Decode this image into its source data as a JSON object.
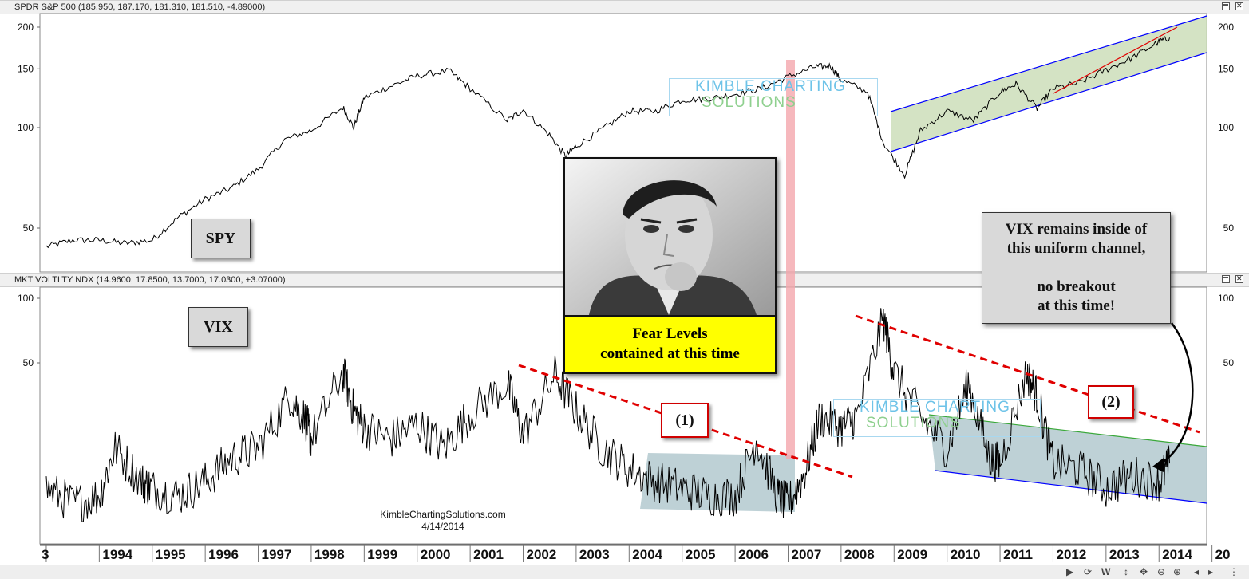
{
  "window": {
    "top_pane_title": "SPDR S&P 500 (185.950, 187.170, 181.310, 181.510, -4.89000)",
    "bottom_pane_title": "MKT VOLTLTY NDX (14.9600, 17.8500, 13.7000, 17.0300, +3.07000)"
  },
  "annotations": {
    "spy_label": "SPY",
    "vix_label": "VIX",
    "fear_caption_line1": "Fear Levels",
    "fear_caption_line2": "contained at this time",
    "callout_line1": "VIX remains inside of",
    "callout_line2": "this uniform channel,",
    "callout_line3": "no breakout",
    "callout_line4": "at this time!",
    "marker1": "(1)",
    "marker2": "(2)",
    "watermark_line1": "KIMBLE CHARTING",
    "watermark_line2": "SOLUTIONS",
    "credit_site": "KimbleChartingSolutions.com",
    "credit_date": "4/14/2014"
  },
  "colors": {
    "price_line": "#000000",
    "trend_dashed": "#e00000",
    "spy_channel_fill": "#c9dcb5",
    "spy_channel_line": "#0000ff",
    "spy_inner_trend": "#e00000",
    "vix_zone_fill": "#b7ccd2",
    "vix_channel_top": "#3aa83a",
    "vix_channel_bottom": "#0000ff",
    "highlight_band": "#f4a6ad",
    "caption_bg": "#ffff00"
  },
  "chart_data": [
    {
      "type": "line",
      "name_label": "SPY",
      "scale": "log",
      "y_ticks": [
        50,
        100,
        150,
        200
      ],
      "x": [
        1993.0,
        1993.5,
        1994.0,
        1994.5,
        1995.0,
        1995.5,
        1996.0,
        1996.5,
        1997.0,
        1997.5,
        1998.0,
        1998.6,
        1998.8,
        1999.0,
        1999.5,
        2000.0,
        2000.6,
        2001.0,
        2001.7,
        2002.0,
        2002.5,
        2002.8,
        2003.0,
        2003.5,
        2004.0,
        2004.5,
        2005.0,
        2005.5,
        2006.0,
        2006.5,
        2007.0,
        2007.5,
        2007.8,
        2008.0,
        2008.5,
        2008.8,
        2009.2,
        2009.5,
        2010.0,
        2010.5,
        2011.0,
        2011.3,
        2011.7,
        2012.0,
        2012.5,
        2013.0,
        2013.5,
        2014.0,
        2014.2
      ],
      "y": [
        44,
        46,
        46,
        45,
        46,
        54,
        61,
        66,
        75,
        92,
        98,
        115,
        100,
        123,
        133,
        143,
        148,
        131,
        105,
        113,
        95,
        82,
        88,
        99,
        112,
        112,
        121,
        122,
        126,
        131,
        142,
        152,
        153,
        139,
        128,
        90,
        72,
        98,
        112,
        105,
        128,
        135,
        114,
        131,
        136,
        149,
        162,
        181,
        186
      ]
    },
    {
      "type": "line",
      "name_label": "VIX",
      "scale": "log",
      "y_ticks": [
        50,
        100
      ],
      "x": [
        1993.0,
        1993.5,
        1994.0,
        1994.3,
        1994.8,
        1995.0,
        1995.5,
        1996.0,
        1996.5,
        1997.0,
        1997.6,
        1997.9,
        1998.0,
        1998.6,
        1998.8,
        1999.0,
        1999.5,
        2000.0,
        2000.5,
        2001.0,
        2001.7,
        2002.0,
        2002.6,
        2003.0,
        2003.5,
        2004.0,
        2004.5,
        2005.0,
        2005.5,
        2006.0,
        2006.4,
        2006.8,
        2007.0,
        2007.3,
        2007.6,
        2008.0,
        2008.3,
        2008.8,
        2009.0,
        2009.5,
        2010.0,
        2010.4,
        2010.8,
        2011.0,
        2011.5,
        2011.7,
        2012.0,
        2012.5,
        2013.0,
        2013.5,
        2014.0,
        2014.2
      ],
      "y": [
        13,
        11,
        12,
        20,
        14,
        13,
        12,
        14,
        18,
        20,
        35,
        27,
        22,
        45,
        30,
        25,
        22,
        26,
        20,
        29,
        40,
        23,
        44,
        30,
        20,
        16,
        14,
        13,
        12,
        12,
        22,
        12,
        11,
        15,
        28,
        25,
        28,
        80,
        45,
        28,
        20,
        40,
        18,
        17,
        45,
        35,
        17,
        16,
        13,
        15,
        14,
        17
      ]
    }
  ],
  "x_axis_labels": [
    "3",
    "1994",
    "1995",
    "1996",
    "1997",
    "1998",
    "1999",
    "2000",
    "2001",
    "2002",
    "2003",
    "2004",
    "2005",
    "2006",
    "2007",
    "2008",
    "2009",
    "2010",
    "2011",
    "2012",
    "2013",
    "2014",
    "20"
  ]
}
